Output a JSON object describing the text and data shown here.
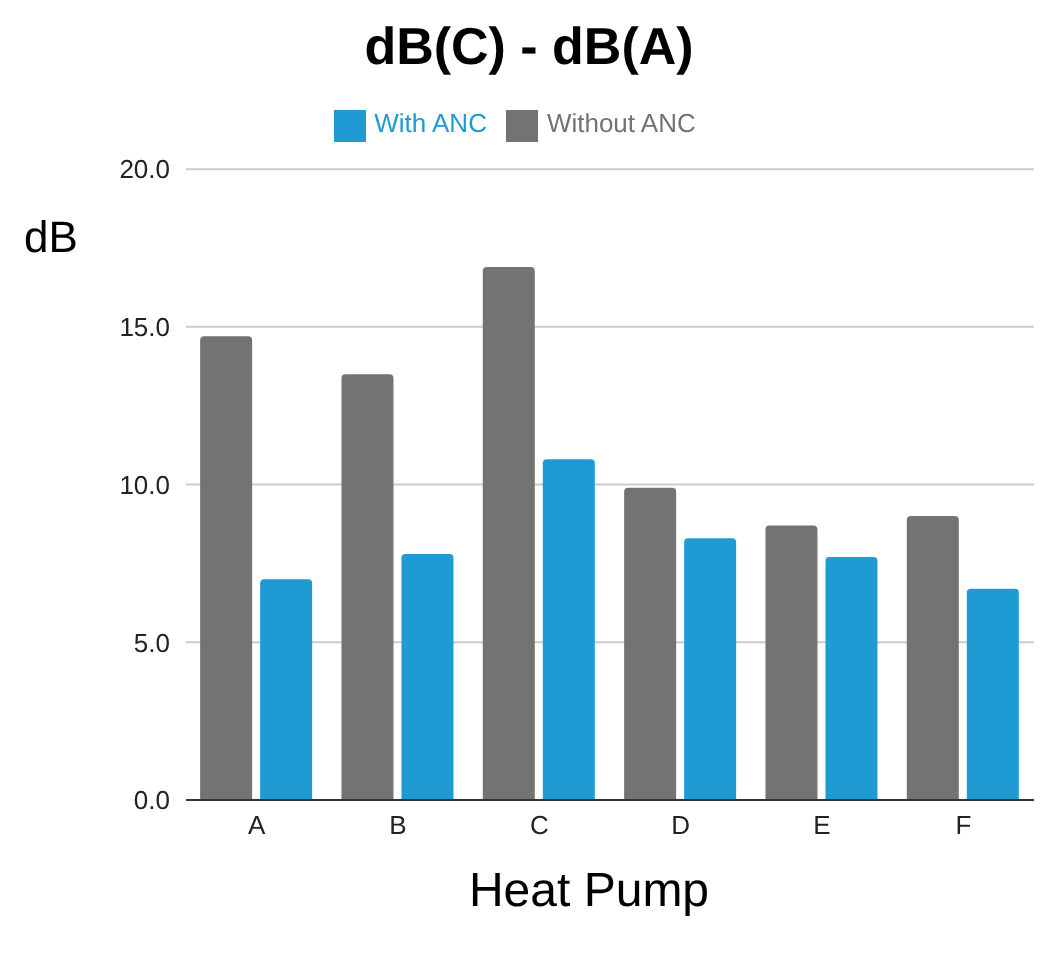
{
  "chart_data": {
    "type": "bar",
    "title": "dB(C) - dB(A)",
    "xlabel": "Heat Pump",
    "ylabel": "dB",
    "categories": [
      "A",
      "B",
      "C",
      "D",
      "E",
      "F"
    ],
    "series": [
      {
        "name": "Without ANC",
        "color": "#737373",
        "values": [
          14.7,
          13.5,
          16.9,
          9.9,
          8.7,
          9.0
        ]
      },
      {
        "name": "With ANC",
        "color": "#1e9bd3",
        "values": [
          7.0,
          7.8,
          10.8,
          8.3,
          7.7,
          6.7
        ]
      }
    ],
    "ylim": [
      0,
      20
    ],
    "yticks": [
      {
        "value": 0,
        "label": "0.0"
      },
      {
        "value": 5,
        "label": "5.0"
      },
      {
        "value": 10,
        "label": "10.0"
      },
      {
        "value": 15,
        "label": "15.0"
      },
      {
        "value": 20,
        "label": "20.0"
      }
    ],
    "grid": "y",
    "legend": "top"
  }
}
